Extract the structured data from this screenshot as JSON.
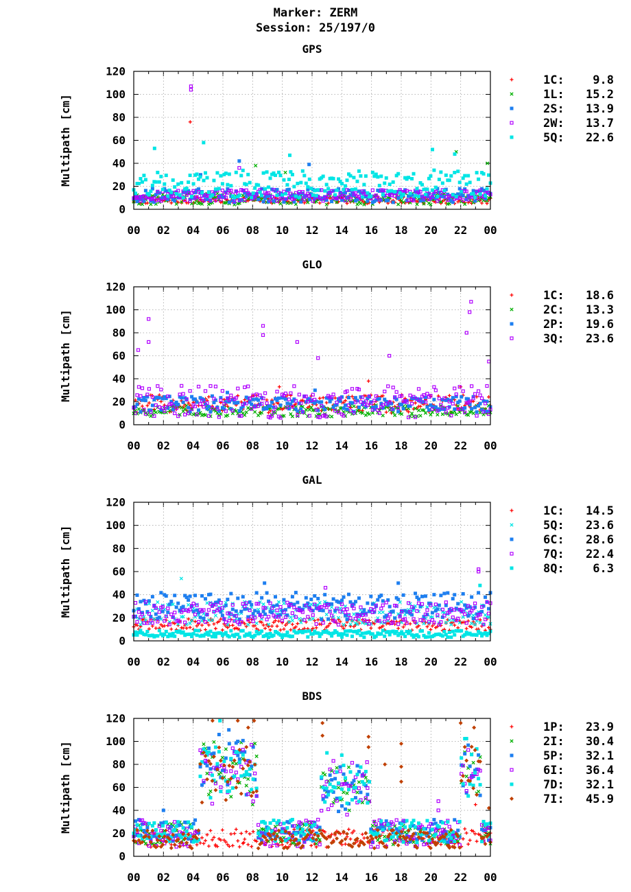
{
  "header": {
    "marker": "Marker: ZERM",
    "session": "Session: 25/197/0"
  },
  "colors": {
    "1C": "#ff0000",
    "1L": "#00b000",
    "2S": "#1e7ff0",
    "2W": "#b000ff",
    "5Q": "#00e5e5",
    "2C": "#00b000",
    "2P": "#1e7ff0",
    "3Q": "#b000ff",
    "6C": "#1e7ff0",
    "7Q": "#b000ff",
    "8Q": "#00e5e5",
    "1P": "#ff0000",
    "2I": "#00b000",
    "5P": "#1e7ff0",
    "6I": "#b000ff",
    "7D": "#00e5e5",
    "7I": "#c04000"
  },
  "chart_data": [
    {
      "type": "scatter",
      "title": "GPS",
      "ylabel": "Multipath [cm]",
      "ylim": [
        0,
        120
      ],
      "yticks": [
        "0",
        "20",
        "40",
        "60",
        "80",
        "100",
        "120"
      ],
      "xlim": [
        0,
        24
      ],
      "xticks": [
        "00",
        "02",
        "04",
        "06",
        "08",
        "10",
        "12",
        "14",
        "16",
        "18",
        "20",
        "22",
        "00"
      ],
      "grid": true,
      "legend_position": "right",
      "series": [
        {
          "name": "1C",
          "label": "1C:",
          "value": "9.8",
          "marker": "plus",
          "base": 8,
          "amp": 3,
          "outliers": [
            [
              3.8,
              76
            ]
          ]
        },
        {
          "name": "1L",
          "label": "1L:",
          "value": "15.2",
          "marker": "cross",
          "base": 9,
          "amp": 5,
          "outliers": [
            [
              8.2,
              38
            ],
            [
              10.2,
              32
            ],
            [
              21.7,
              50
            ],
            [
              23.8,
              40
            ]
          ]
        },
        {
          "name": "2S",
          "label": "2S:",
          "value": "13.9",
          "marker": "square",
          "base": 12,
          "amp": 6,
          "outliers": [
            [
              7.1,
              42
            ],
            [
              11.8,
              39
            ],
            [
              4.5,
              30
            ]
          ]
        },
        {
          "name": "2W",
          "label": "2W:",
          "value": "13.7",
          "marker": "box",
          "base": 12,
          "amp": 5,
          "outliers": [
            [
              3.85,
              104
            ],
            [
              3.85,
              107
            ],
            [
              7.1,
              36
            ]
          ]
        },
        {
          "name": "5Q",
          "label": "5Q:",
          "value": "22.6",
          "marker": "square",
          "base": 22,
          "amp": 12,
          "outliers": [
            [
              1.4,
              53
            ],
            [
              4.7,
              58
            ],
            [
              10.5,
              47
            ],
            [
              20.1,
              52
            ],
            [
              21.6,
              48
            ]
          ]
        }
      ]
    },
    {
      "type": "scatter",
      "title": "GLO",
      "ylabel": "Multipath [cm]",
      "ylim": [
        0,
        120
      ],
      "yticks": [
        "0",
        "20",
        "40",
        "60",
        "80",
        "100",
        "120"
      ],
      "xlim": [
        0,
        24
      ],
      "xticks": [
        "00",
        "02",
        "04",
        "06",
        "08",
        "10",
        "12",
        "14",
        "16",
        "18",
        "20",
        "22",
        "00"
      ],
      "grid": true,
      "legend_position": "right",
      "series": [
        {
          "name": "1C",
          "label": "1C:",
          "value": "18.6",
          "marker": "plus",
          "base": 18,
          "amp": 8,
          "outliers": [
            [
              9.8,
              33
            ],
            [
              15.8,
              38
            ],
            [
              22.0,
              33
            ],
            [
              20.5,
              25
            ]
          ]
        },
        {
          "name": "2C",
          "label": "2C:",
          "value": "13.3",
          "marker": "cross",
          "base": 12,
          "amp": 5,
          "outliers": []
        },
        {
          "name": "2P",
          "label": "2P:",
          "value": "19.6",
          "marker": "square",
          "base": 18,
          "amp": 7,
          "outliers": [
            [
              6.3,
              28
            ],
            [
              12.2,
              30
            ]
          ]
        },
        {
          "name": "3Q",
          "label": "3Q:",
          "value": "23.6",
          "marker": "box",
          "base": 20,
          "amp": 14,
          "outliers": [
            [
              1.0,
              92
            ],
            [
              1.0,
              72
            ],
            [
              8.7,
              86
            ],
            [
              8.7,
              78
            ],
            [
              11.0,
              72
            ],
            [
              12.4,
              58
            ],
            [
              22.7,
              107
            ],
            [
              22.6,
              98
            ],
            [
              22.4,
              80
            ],
            [
              0.3,
              65
            ],
            [
              23.9,
              55
            ],
            [
              17.2,
              60
            ]
          ]
        }
      ]
    },
    {
      "type": "scatter",
      "title": "GAL",
      "ylabel": "Multipath [cm]",
      "ylim": [
        0,
        120
      ],
      "yticks": [
        "0",
        "20",
        "40",
        "60",
        "80",
        "100",
        "120"
      ],
      "xlim": [
        0,
        24
      ],
      "xticks": [
        "00",
        "02",
        "04",
        "06",
        "08",
        "10",
        "12",
        "14",
        "16",
        "18",
        "20",
        "22",
        "00"
      ],
      "grid": true,
      "legend_position": "right",
      "series": [
        {
          "name": "1C",
          "label": "1C:",
          "value": "14.5",
          "marker": "plus",
          "base": 14,
          "amp": 5,
          "outliers": []
        },
        {
          "name": "5Q",
          "label": "5Q:",
          "value": "23.6",
          "marker": "cross",
          "base": 24,
          "amp": 10,
          "outliers": [
            [
              3.2,
              54
            ]
          ]
        },
        {
          "name": "6C",
          "label": "6C:",
          "value": "28.6",
          "marker": "square",
          "base": 30,
          "amp": 12,
          "outliers": [
            [
              8.8,
              50
            ],
            [
              17.8,
              50
            ]
          ]
        },
        {
          "name": "7Q",
          "label": "7Q:",
          "value": "22.4",
          "marker": "box",
          "base": 24,
          "amp": 10,
          "outliers": [
            [
              12.9,
              46
            ],
            [
              23.2,
              62
            ],
            [
              23.2,
              60
            ]
          ]
        },
        {
          "name": "8Q",
          "label": "8Q:",
          "value": "6.3",
          "marker": "square",
          "base": 6,
          "amp": 3,
          "outliers": [
            [
              23.3,
              48
            ]
          ]
        }
      ]
    },
    {
      "type": "scatter",
      "title": "BDS",
      "ylabel": "Multipath [cm]",
      "ylim": [
        0,
        120
      ],
      "yticks": [
        "0",
        "20",
        "40",
        "60",
        "80",
        "100",
        "120"
      ],
      "xlim": [
        0,
        24
      ],
      "xticks": [
        "00",
        "02",
        "04",
        "06",
        "08",
        "10",
        "12",
        "14",
        "16",
        "18",
        "20",
        "22",
        "00"
      ],
      "grid": true,
      "legend_position": "right",
      "series": [
        {
          "name": "1P",
          "label": "1P:",
          "value": "23.9",
          "marker": "plus",
          "base": 16,
          "amp": 8,
          "outliers": [
            [
              5.5,
              10
            ],
            [
              7.4,
              12
            ],
            [
              23.0,
              45
            ]
          ]
        },
        {
          "name": "2I",
          "label": "2I:",
          "value": "30.4",
          "marker": "cross",
          "base": 20,
          "amp": 10,
          "outliers": [
            [
              8.0,
              45
            ],
            [
              14.5,
              40
            ],
            [
              15.6,
              50
            ]
          ]
        },
        {
          "name": "5P",
          "label": "5P:",
          "value": "32.1",
          "marker": "square",
          "base": 22,
          "amp": 10,
          "outliers": [
            [
              2.0,
              40
            ],
            [
              7.0,
              100
            ],
            [
              6.4,
              110
            ]
          ]
        },
        {
          "name": "6I",
          "label": "6I:",
          "value": "36.4",
          "marker": "box",
          "base": 20,
          "amp": 12,
          "outliers": [
            [
              20.5,
              48
            ],
            [
              20.5,
              40
            ],
            [
              15.7,
              82
            ]
          ]
        },
        {
          "name": "7D",
          "label": "7D:",
          "value": "32.1",
          "marker": "square",
          "base": 22,
          "amp": 10,
          "outliers": [
            [
              5.8,
              118
            ],
            [
              13.0,
              90
            ],
            [
              14.0,
              88
            ]
          ]
        },
        {
          "name": "7I",
          "label": "7I:",
          "value": "45.9",
          "marker": "diamond",
          "base": 15,
          "amp": 8,
          "outliers": [
            [
              5.3,
              118
            ],
            [
              7.0,
              118
            ],
            [
              7.7,
              112
            ],
            [
              8.1,
              118
            ],
            [
              12.7,
              116
            ],
            [
              12.7,
              105
            ],
            [
              15.8,
              104
            ],
            [
              15.8,
              95
            ],
            [
              18.0,
              98
            ],
            [
              18.0,
              78
            ],
            [
              18.0,
              65
            ],
            [
              22.0,
              116
            ],
            [
              22.9,
              112
            ],
            [
              16.9,
              80
            ],
            [
              23.9,
              42
            ]
          ]
        }
      ]
    }
  ]
}
